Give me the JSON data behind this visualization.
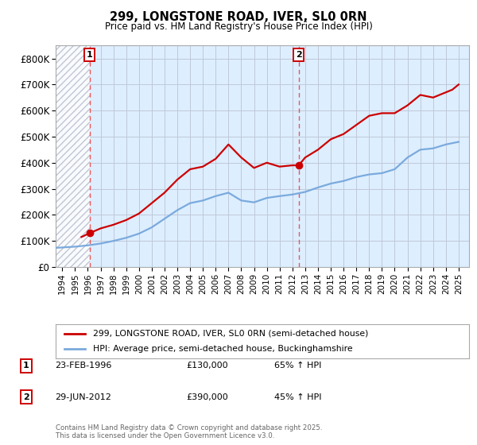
{
  "title": "299, LONGSTONE ROAD, IVER, SL0 0RN",
  "subtitle": "Price paid vs. HM Land Registry's House Price Index (HPI)",
  "ylim": [
    0,
    850000
  ],
  "yticks": [
    0,
    100000,
    200000,
    300000,
    400000,
    500000,
    600000,
    700000,
    800000
  ],
  "ytick_labels": [
    "£0",
    "£100K",
    "£200K",
    "£300K",
    "£400K",
    "£500K",
    "£600K",
    "£700K",
    "£800K"
  ],
  "background_color": "#ffffff",
  "plot_bg_color": "#ddeeff",
  "grid_color": "#c0c8d8",
  "red_line_color": "#cc0000",
  "blue_line_color": "#7aaadd",
  "dashed_line_color": "#ee4444",
  "sale1_x": 1996.15,
  "sale1_y": 130000,
  "sale1_label": "1",
  "sale2_x": 2012.49,
  "sale2_y": 390000,
  "sale2_label": "2",
  "legend_red": "299, LONGSTONE ROAD, IVER, SL0 0RN (semi-detached house)",
  "legend_blue": "HPI: Average price, semi-detached house, Buckinghamshire",
  "footnote": "Contains HM Land Registry data © Crown copyright and database right 2025.\nThis data is licensed under the Open Government Licence v3.0.",
  "table_rows": [
    {
      "num": "1",
      "date": "23-FEB-1996",
      "price": "£130,000",
      "hpi": "65% ↑ HPI"
    },
    {
      "num": "2",
      "date": "29-JUN-2012",
      "price": "£390,000",
      "hpi": "45% ↑ HPI"
    }
  ],
  "xlim": [
    1993.5,
    2025.8
  ],
  "hpi_years": [
    1993,
    1994,
    1995,
    1996,
    1997,
    1998,
    1999,
    2000,
    2001,
    2002,
    2003,
    2004,
    2005,
    2006,
    2007,
    2008,
    2009,
    2010,
    2011,
    2012,
    2013,
    2014,
    2015,
    2016,
    2017,
    2018,
    2019,
    2020,
    2021,
    2022,
    2023,
    2024,
    2025
  ],
  "hpi_values": [
    72000,
    75000,
    78000,
    83000,
    90000,
    100000,
    112000,
    128000,
    152000,
    185000,
    218000,
    245000,
    255000,
    272000,
    285000,
    255000,
    248000,
    265000,
    272000,
    278000,
    288000,
    305000,
    320000,
    330000,
    345000,
    355000,
    360000,
    375000,
    420000,
    450000,
    455000,
    470000,
    480000
  ],
  "price_years": [
    1995.5,
    1996.15,
    1997,
    1998,
    1999,
    2000,
    2001,
    2002,
    2003,
    2004,
    2005,
    2006,
    2007,
    2008,
    2009,
    2010,
    2011,
    2012,
    2012.49,
    2013,
    2014,
    2015,
    2016,
    2017,
    2018,
    2019,
    2020,
    2021,
    2022,
    2023,
    2024,
    2024.5,
    2025
  ],
  "price_values": [
    115000,
    130000,
    148000,
    162000,
    180000,
    205000,
    245000,
    285000,
    335000,
    375000,
    385000,
    415000,
    470000,
    420000,
    380000,
    400000,
    385000,
    390000,
    390000,
    420000,
    450000,
    490000,
    510000,
    545000,
    580000,
    590000,
    590000,
    620000,
    660000,
    650000,
    670000,
    680000,
    700000
  ]
}
